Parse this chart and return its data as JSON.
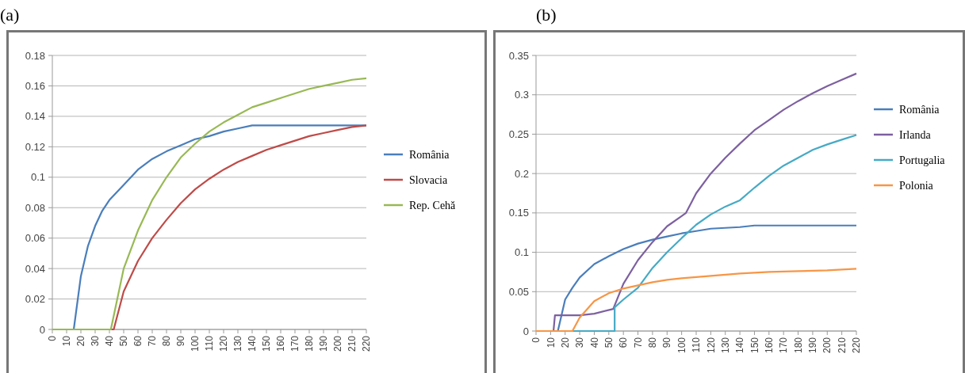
{
  "chart_data": [
    {
      "type": "line",
      "title": "(a)",
      "xlim": [
        0,
        220
      ],
      "xticks": [
        0,
        10,
        20,
        30,
        40,
        50,
        60,
        70,
        80,
        90,
        100,
        110,
        120,
        130,
        140,
        150,
        160,
        170,
        180,
        190,
        200,
        210,
        220
      ],
      "ylim": [
        0,
        0.18
      ],
      "yticks": [
        0,
        0.02,
        0.04,
        0.06,
        0.08,
        0.1,
        0.12,
        0.14,
        0.16,
        0.18
      ],
      "grid": "y",
      "legend": "right",
      "series": [
        {
          "name": "România",
          "color": "#4a7ebb",
          "x": [
            0,
            15,
            20,
            25,
            30,
            35,
            40,
            50,
            60,
            70,
            80,
            90,
            100,
            110,
            120,
            130,
            140,
            145,
            220
          ],
          "values": [
            0,
            0,
            0.035,
            0.055,
            0.068,
            0.078,
            0.085,
            0.095,
            0.105,
            0.112,
            0.117,
            0.121,
            0.125,
            0.127,
            0.13,
            0.132,
            0.134,
            0.134,
            0.134
          ]
        },
        {
          "name": "Slovacia",
          "color": "#be4b48",
          "x": [
            0,
            43,
            50,
            60,
            70,
            80,
            90,
            100,
            110,
            120,
            130,
            140,
            150,
            160,
            170,
            180,
            190,
            200,
            210,
            220
          ],
          "values": [
            0,
            0,
            0.025,
            0.045,
            0.06,
            0.072,
            0.083,
            0.092,
            0.099,
            0.105,
            0.11,
            0.114,
            0.118,
            0.121,
            0.124,
            0.127,
            0.129,
            0.131,
            0.133,
            0.134
          ]
        },
        {
          "name": "Rep. Cehă",
          "color": "#98b954",
          "x": [
            0,
            41,
            50,
            60,
            70,
            80,
            90,
            100,
            110,
            120,
            130,
            140,
            150,
            160,
            170,
            180,
            190,
            200,
            210,
            220
          ],
          "values": [
            0,
            0,
            0.04,
            0.065,
            0.085,
            0.1,
            0.113,
            0.122,
            0.13,
            0.136,
            0.141,
            0.146,
            0.149,
            0.152,
            0.155,
            0.158,
            0.16,
            0.162,
            0.164,
            0.165
          ]
        }
      ]
    },
    {
      "type": "line",
      "title": "(b)",
      "xlim": [
        0,
        220
      ],
      "xticks": [
        0,
        10,
        20,
        30,
        40,
        50,
        60,
        70,
        80,
        90,
        100,
        110,
        120,
        130,
        140,
        150,
        160,
        170,
        180,
        190,
        200,
        210,
        220
      ],
      "ylim": [
        0,
        0.35
      ],
      "yticks": [
        0,
        0.05,
        0.1,
        0.15,
        0.2,
        0.25,
        0.3,
        0.35
      ],
      "grid": "y",
      "legend": "right",
      "series": [
        {
          "name": "România",
          "color": "#4a7ebb",
          "x": [
            0,
            15,
            20,
            25,
            30,
            40,
            50,
            60,
            70,
            80,
            90,
            100,
            110,
            120,
            140,
            150,
            220
          ],
          "values": [
            0,
            0,
            0.04,
            0.055,
            0.068,
            0.085,
            0.095,
            0.104,
            0.111,
            0.116,
            0.12,
            0.124,
            0.127,
            0.13,
            0.132,
            0.134,
            0.134
          ]
        },
        {
          "name": "Irlanda",
          "color": "#7d60a0",
          "x": [
            0,
            12,
            13,
            30,
            40,
            53,
            60,
            70,
            80,
            90,
            100,
            103,
            110,
            120,
            130,
            140,
            150,
            160,
            170,
            180,
            190,
            200,
            210,
            220
          ],
          "values": [
            0,
            0,
            0.02,
            0.02,
            0.022,
            0.028,
            0.06,
            0.09,
            0.113,
            0.133,
            0.146,
            0.15,
            0.175,
            0.2,
            0.22,
            0.238,
            0.255,
            0.268,
            0.281,
            0.292,
            0.302,
            0.311,
            0.319,
            0.327
          ]
        },
        {
          "name": "Portugalia",
          "color": "#46aac5",
          "x": [
            0,
            54,
            54,
            60,
            70,
            80,
            90,
            100,
            110,
            120,
            130,
            140,
            150,
            160,
            170,
            180,
            190,
            200,
            210,
            220
          ],
          "values": [
            0,
            0,
            0.03,
            0.04,
            0.055,
            0.08,
            0.1,
            0.118,
            0.135,
            0.148,
            0.158,
            0.166,
            0.182,
            0.197,
            0.21,
            0.22,
            0.23,
            0.237,
            0.243,
            0.249
          ]
        },
        {
          "name": "Polonia",
          "color": "#f79646",
          "x": [
            0,
            25,
            30,
            40,
            50,
            60,
            70,
            80,
            90,
            100,
            120,
            140,
            160,
            180,
            200,
            220
          ],
          "values": [
            0,
            0,
            0.017,
            0.038,
            0.048,
            0.054,
            0.058,
            0.062,
            0.065,
            0.067,
            0.07,
            0.073,
            0.075,
            0.076,
            0.077,
            0.079
          ]
        }
      ]
    }
  ]
}
